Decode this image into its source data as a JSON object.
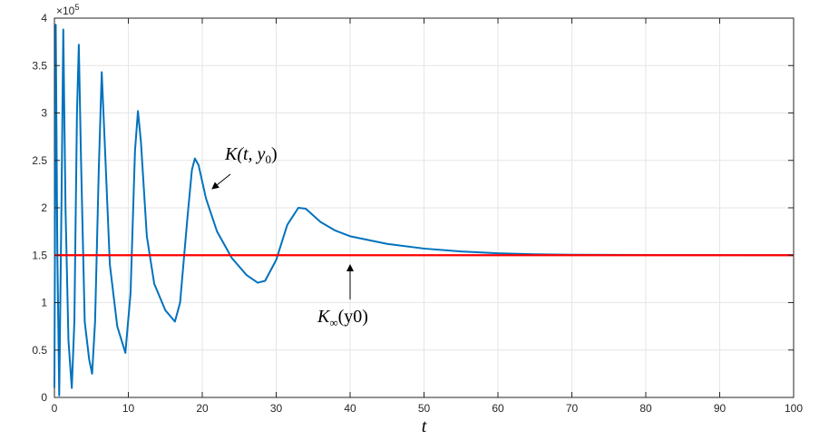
{
  "chart_data": {
    "type": "line",
    "title": "",
    "xlabel": "t",
    "ylabel": "",
    "xlim": [
      0,
      100
    ],
    "ylim": [
      0,
      400000
    ],
    "x_ticks": [
      0,
      10,
      20,
      30,
      40,
      50,
      60,
      70,
      80,
      90,
      100
    ],
    "x_tick_labels": [
      "0",
      "10",
      "20",
      "30",
      "40",
      "50",
      "60",
      "70",
      "80",
      "90",
      "100"
    ],
    "y_ticks": [
      0,
      50000,
      100000,
      150000,
      200000,
      250000,
      300000,
      350000,
      400000
    ],
    "y_tick_labels": [
      "0",
      "0.5",
      "1",
      "1.5",
      "2",
      "2.5",
      "3",
      "3.5",
      "4"
    ],
    "y_multiplier": "×10",
    "y_multiplier_exp": "5",
    "grid": true,
    "series": [
      {
        "name": "K(t, y0)",
        "color": "#0072BD",
        "points": [
          [
            0,
            10000
          ],
          [
            0.18,
            393000
          ],
          [
            0.4,
            150000
          ],
          [
            0.65,
            2000
          ],
          [
            0.95,
            200000
          ],
          [
            1.2,
            388000
          ],
          [
            1.5,
            200000
          ],
          [
            1.9,
            60000
          ],
          [
            2.35,
            10000
          ],
          [
            2.7,
            80000
          ],
          [
            3.05,
            300000
          ],
          [
            3.3,
            372000
          ],
          [
            3.6,
            250000
          ],
          [
            4.1,
            80000
          ],
          [
            4.7,
            40000
          ],
          [
            5.1,
            25000
          ],
          [
            5.5,
            80000
          ],
          [
            6.0,
            240000
          ],
          [
            6.4,
            343000
          ],
          [
            6.8,
            270000
          ],
          [
            7.5,
            140000
          ],
          [
            8.5,
            75000
          ],
          [
            9.6,
            47000
          ],
          [
            10.3,
            110000
          ],
          [
            10.9,
            260000
          ],
          [
            11.3,
            302000
          ],
          [
            11.7,
            270000
          ],
          [
            12.5,
            170000
          ],
          [
            13.5,
            120000
          ],
          [
            15.0,
            92000
          ],
          [
            16.3,
            80000
          ],
          [
            17.0,
            100000
          ],
          [
            18.0,
            190000
          ],
          [
            18.6,
            240000
          ],
          [
            19.0,
            252000
          ],
          [
            19.5,
            245000
          ],
          [
            20.5,
            210000
          ],
          [
            22.0,
            175000
          ],
          [
            24.0,
            147000
          ],
          [
            26.0,
            129000
          ],
          [
            27.5,
            121000
          ],
          [
            28.5,
            123000
          ],
          [
            30.0,
            145000
          ],
          [
            31.5,
            182000
          ],
          [
            33.0,
            200000
          ],
          [
            34.0,
            199000
          ],
          [
            36.0,
            185000
          ],
          [
            38.0,
            176000
          ],
          [
            40.0,
            170000
          ],
          [
            45.0,
            162000
          ],
          [
            50.0,
            157000
          ],
          [
            55.0,
            154000
          ],
          [
            60.0,
            152000
          ],
          [
            65.0,
            151000
          ],
          [
            70.0,
            150500
          ],
          [
            80.0,
            150200
          ],
          [
            90.0,
            150100
          ],
          [
            100.0,
            150050
          ]
        ]
      },
      {
        "name": "K∞(y0)",
        "color": "#FF0000",
        "points": [
          [
            0,
            150000
          ],
          [
            100,
            150000
          ]
        ]
      }
    ],
    "annotations": [
      {
        "text_main": "K(t, y",
        "text_sub": "0",
        "text_end": ")",
        "arrow_from": [
          21.0,
          232000
        ],
        "arrow_to": [
          21.1,
          230000
        ]
      },
      {
        "text_main": "K",
        "text_sub": "∞",
        "text_end": "(y0)",
        "arrow_from": [
          40,
          130000
        ],
        "arrow_to": [
          40,
          148000
        ]
      }
    ]
  }
}
